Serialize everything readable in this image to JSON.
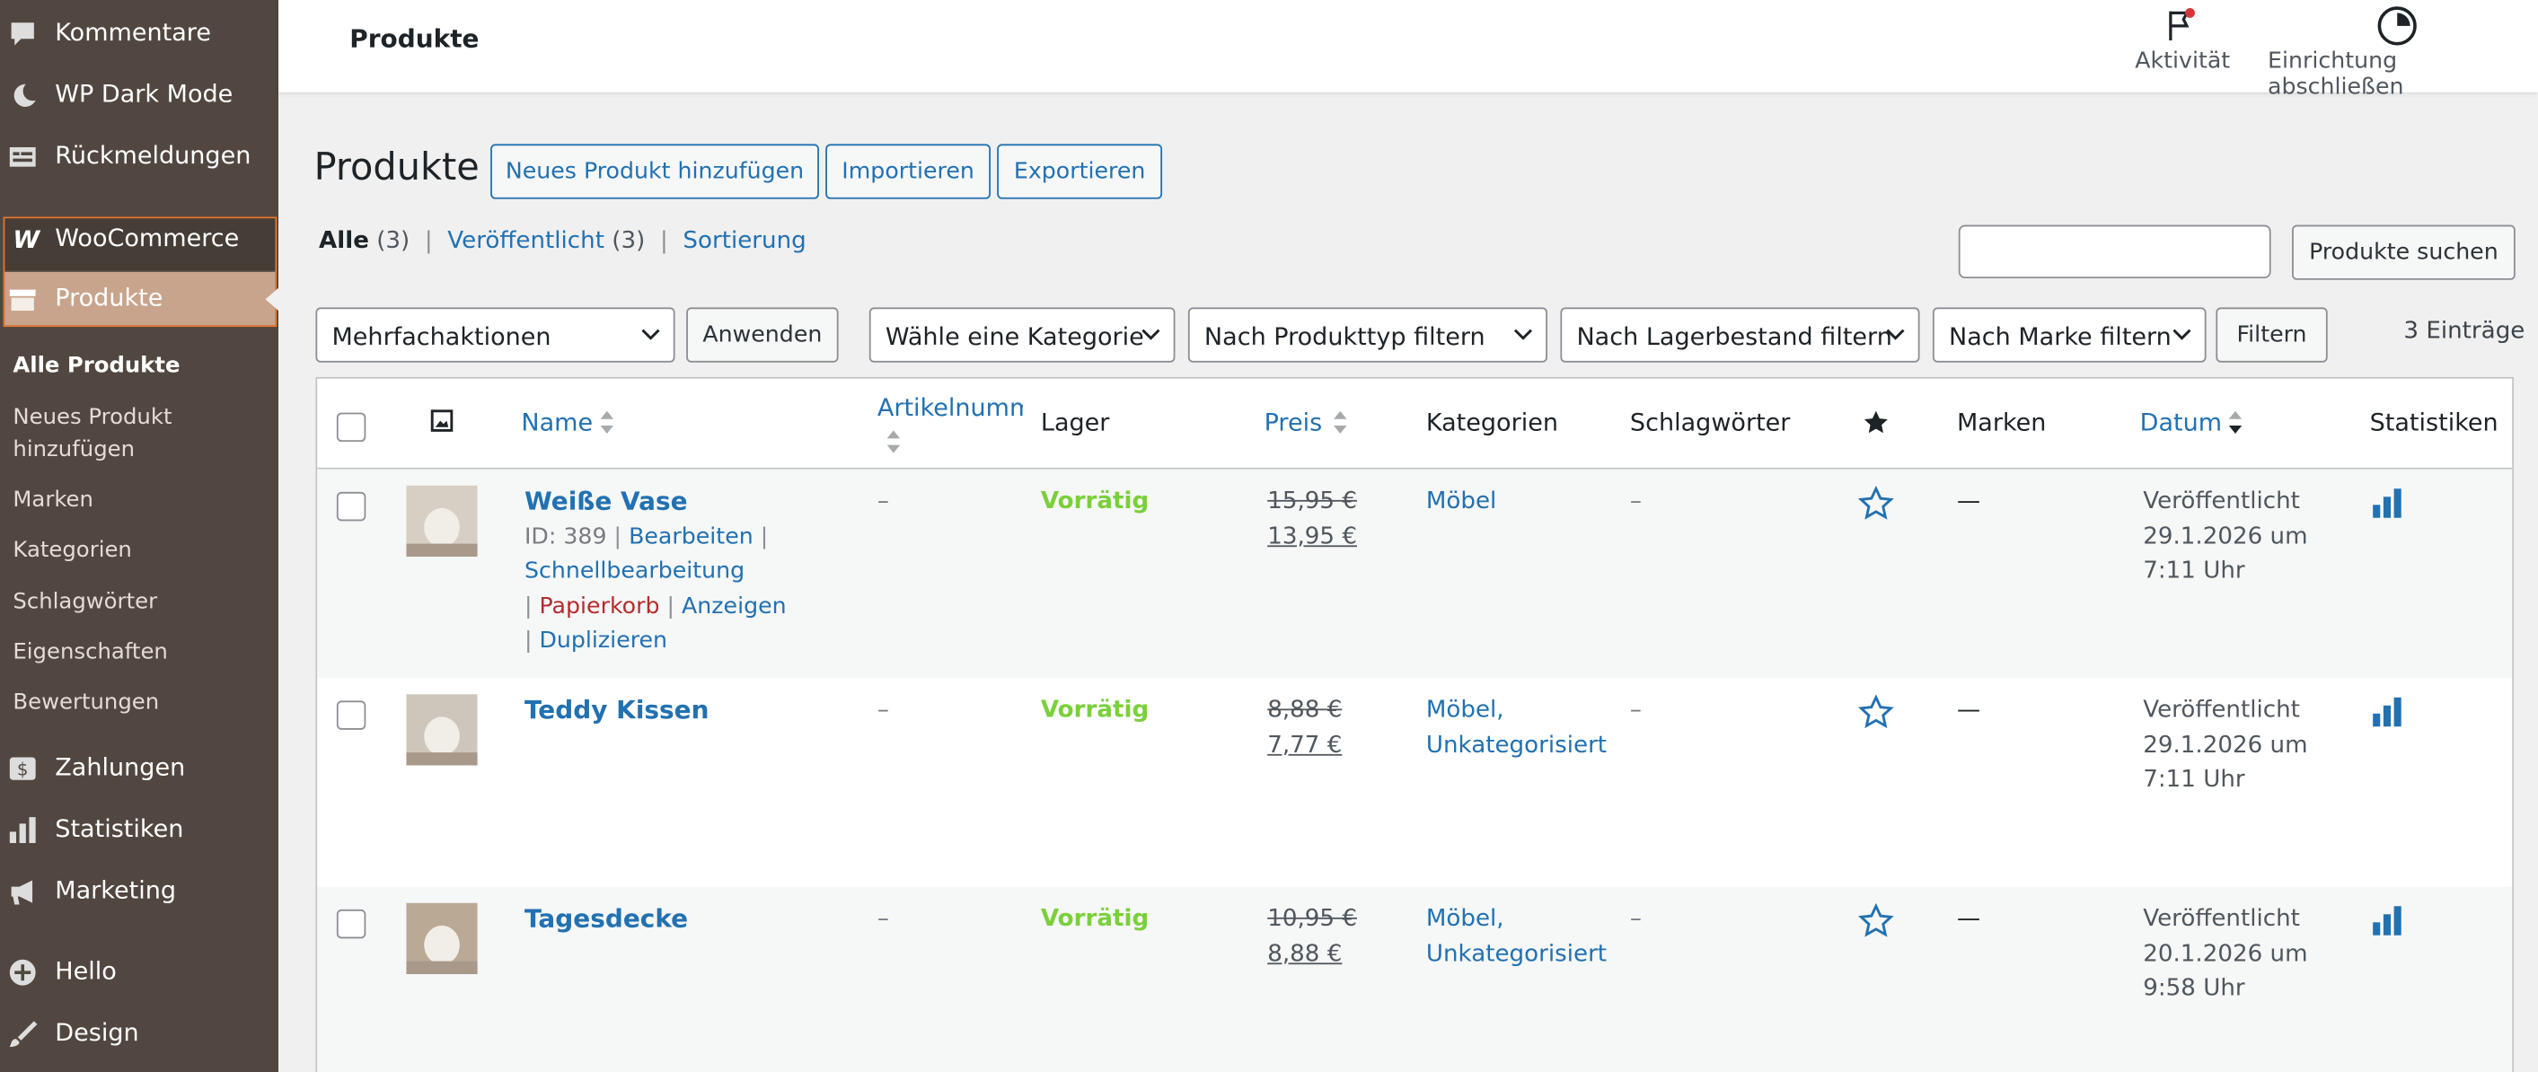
{
  "sidebar": {
    "top_items": [
      "Kommentare",
      "WP Dark Mode",
      "Rückmeldungen"
    ],
    "woocommerce": "WooCommerce",
    "active": "Produkte",
    "submenu": [
      "Alle Produkte",
      "Neues Produkt hinzufügen",
      "Marken",
      "Kategorien",
      "Schlagwörter",
      "Eigenschaften",
      "Bewertungen"
    ],
    "bottom_items": [
      "Zahlungen",
      "Statistiken",
      "Marketing",
      "Hello",
      "Design"
    ]
  },
  "topbar": {
    "title": "Produkte",
    "activity": "Aktivität",
    "setup": "Einrichtung abschließen"
  },
  "page": {
    "title": "Produkte",
    "buttons": [
      "Neues Produkt hinzufügen",
      "Importieren",
      "Exportieren"
    ]
  },
  "views": [
    {
      "label": "Alle",
      "count": "(3)"
    },
    {
      "label": "Veröffentlicht",
      "count": "(3)"
    },
    {
      "label": "Sortierung"
    }
  ],
  "search_button": "Produkte suchen",
  "bulk": {
    "select": "Mehrfachaktionen",
    "apply": "Anwenden"
  },
  "filters": [
    "Wähle eine Kategorie",
    "Nach Produkttyp filtern",
    "Nach Lagerbestand filtern",
    "Nach Marke filtern"
  ],
  "filter_button": "Filtern",
  "count": "3 Einträge",
  "columns": [
    "Name",
    "Artikelnummer",
    "Lager",
    "Preis",
    "Kategorien",
    "Schlagwörter",
    "Marken",
    "Datum",
    "Statistiken"
  ],
  "rows": [
    {
      "name": "Weiße Vase",
      "id": "ID: 389",
      "actions": [
        "Bearbeiten",
        "Schnellbearbeitung",
        "Papierkorb",
        "Anzeigen",
        "Duplizieren"
      ],
      "sku": "–",
      "stock": "Vorrätig",
      "regular_price": "15,95 €",
      "sale_price": "13,95 €",
      "categories": "Möbel",
      "tags": "–",
      "brands": "—",
      "date": "Veröffentlicht 29.1.2026 um 7:11 Uhr"
    },
    {
      "name": "Teddy Kissen",
      "sku": "–",
      "stock": "Vorrätig",
      "regular_price": "8,88 €",
      "sale_price": "7,77 €",
      "categories": "Möbel, Unkategorisiert",
      "tags": "–",
      "brands": "—",
      "date": "Veröffentlicht 29.1.2026 um 7:11 Uhr"
    },
    {
      "name": "Tagesdecke",
      "sku": "–",
      "stock": "Vorrätig",
      "regular_price": "10,95 €",
      "sale_price": "8,88 €",
      "categories": "Möbel, Unkategorisiert",
      "tags": "–",
      "brands": "—",
      "date": "Veröffentlicht 20.1.2026 um 9:58 Uhr"
    }
  ]
}
